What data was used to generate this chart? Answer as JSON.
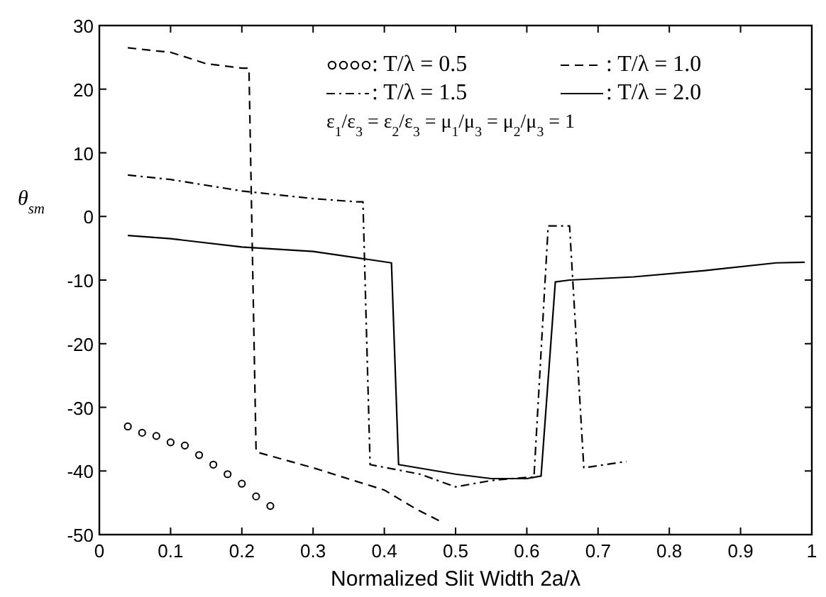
{
  "chart_data": {
    "type": "line",
    "xlabel": "Normalized Slit Width 2a/λ",
    "ylabel": "θ$_{sm}$",
    "xlim": [
      0,
      1
    ],
    "xticks": [
      0,
      0.1,
      0.2,
      0.3,
      0.4,
      0.5,
      0.6,
      0.7,
      0.8,
      0.9,
      1
    ],
    "ylim": [
      -50,
      30
    ],
    "yticks": [
      -50,
      -40,
      -30,
      -20,
      -10,
      0,
      10,
      20,
      30
    ],
    "grid": false,
    "legend": "top right",
    "annotations": [
      "ε$_{1}$/ε$_{3}$ = ε$_{2}$/ε$_{3}$ = μ$_{1}$/μ$_{3}$ = μ$_{2}$/μ$_{3}$ = 1"
    ],
    "series": [
      {
        "name": ": T/λ = 0.5",
        "type": "scatter",
        "marker": "circle",
        "color": "#000000",
        "x": [
          0.04,
          0.06,
          0.08,
          0.1,
          0.12,
          0.14,
          0.16,
          0.18,
          0.2,
          0.22,
          0.24
        ],
        "values": [
          -33,
          -34,
          -34.5,
          -35.5,
          -36,
          -37.5,
          -39,
          -40.5,
          -42,
          -44,
          -45.5
        ]
      },
      {
        "name": ": T/λ = 1.0",
        "line_style": "dashed",
        "color": "#000000",
        "x": [
          0.04,
          0.08,
          0.1,
          0.15,
          0.2,
          0.21,
          0.22,
          0.3,
          0.4,
          0.445,
          0.48
        ],
        "values": [
          26.5,
          26,
          25.8,
          24,
          23.3,
          23.3,
          -37,
          -39.5,
          -43,
          -46,
          -48
        ]
      },
      {
        "name": ": T/λ = 1.5",
        "line_style": "dashdot",
        "color": "#000000",
        "x": [
          0.04,
          0.1,
          0.2,
          0.3,
          0.36,
          0.37,
          0.38,
          0.45,
          0.5,
          0.55,
          0.6,
          0.61,
          0.63,
          0.66,
          0.68,
          0.74
        ],
        "values": [
          6.5,
          5.8,
          4,
          2.8,
          2.3,
          2.3,
          -39,
          -40.5,
          -42.5,
          -41.5,
          -41,
          -41,
          -1.5,
          -1.5,
          -39.5,
          -38.5
        ]
      },
      {
        "name": ": T/λ = 2.0",
        "line_style": "solid",
        "color": "#000000",
        "x": [
          0.04,
          0.1,
          0.2,
          0.3,
          0.38,
          0.41,
          0.42,
          0.5,
          0.55,
          0.6,
          0.62,
          0.64,
          0.66,
          0.75,
          0.85,
          0.95,
          0.99
        ],
        "values": [
          -3,
          -3.5,
          -4.8,
          -5.5,
          -6.8,
          -7.3,
          -39,
          -40.5,
          -41.2,
          -41.2,
          -40.8,
          -10.3,
          -10,
          -9.5,
          -8.5,
          -7.3,
          -7.2
        ]
      }
    ]
  }
}
